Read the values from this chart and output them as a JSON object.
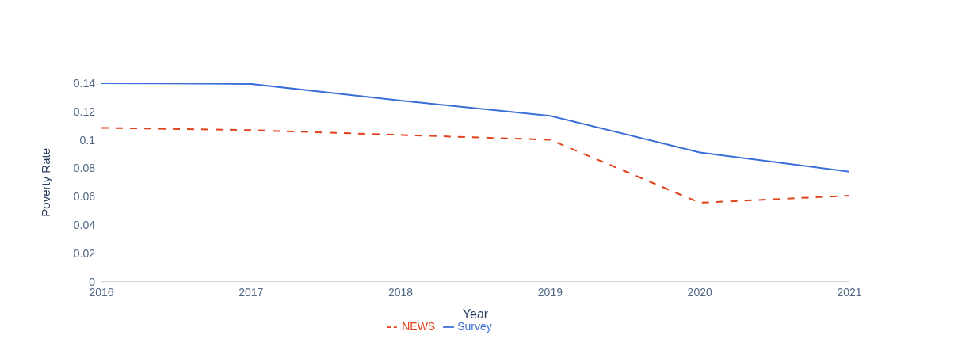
{
  "chart_data": {
    "type": "line",
    "xlabel": "Year",
    "ylabel": "Poverty Rate",
    "x": [
      2016,
      2017,
      2018,
      2019,
      2020,
      2021
    ],
    "xlim": [
      2016,
      2021
    ],
    "xticks": [
      2016,
      2017,
      2018,
      2019,
      2020,
      2021
    ],
    "ylim": [
      0,
      0.14
    ],
    "yticks": [
      0,
      0.02,
      0.04,
      0.06,
      0.08,
      0.1,
      0.12,
      0.14
    ],
    "grid": false,
    "legend": "bottom",
    "marker": "none",
    "series": [
      {
        "name": "Survey",
        "color": "#3b6fd8",
        "line_style": "solid",
        "values": [
          0.14,
          0.1395,
          0.1277,
          0.117,
          0.0911,
          0.0776
        ]
      },
      {
        "name": "NEWS",
        "color": "#e0421c",
        "line_style": "dashed",
        "values": [
          0.1085,
          0.1069,
          0.1035,
          0.1001,
          0.0557,
          0.0607
        ]
      }
    ]
  }
}
